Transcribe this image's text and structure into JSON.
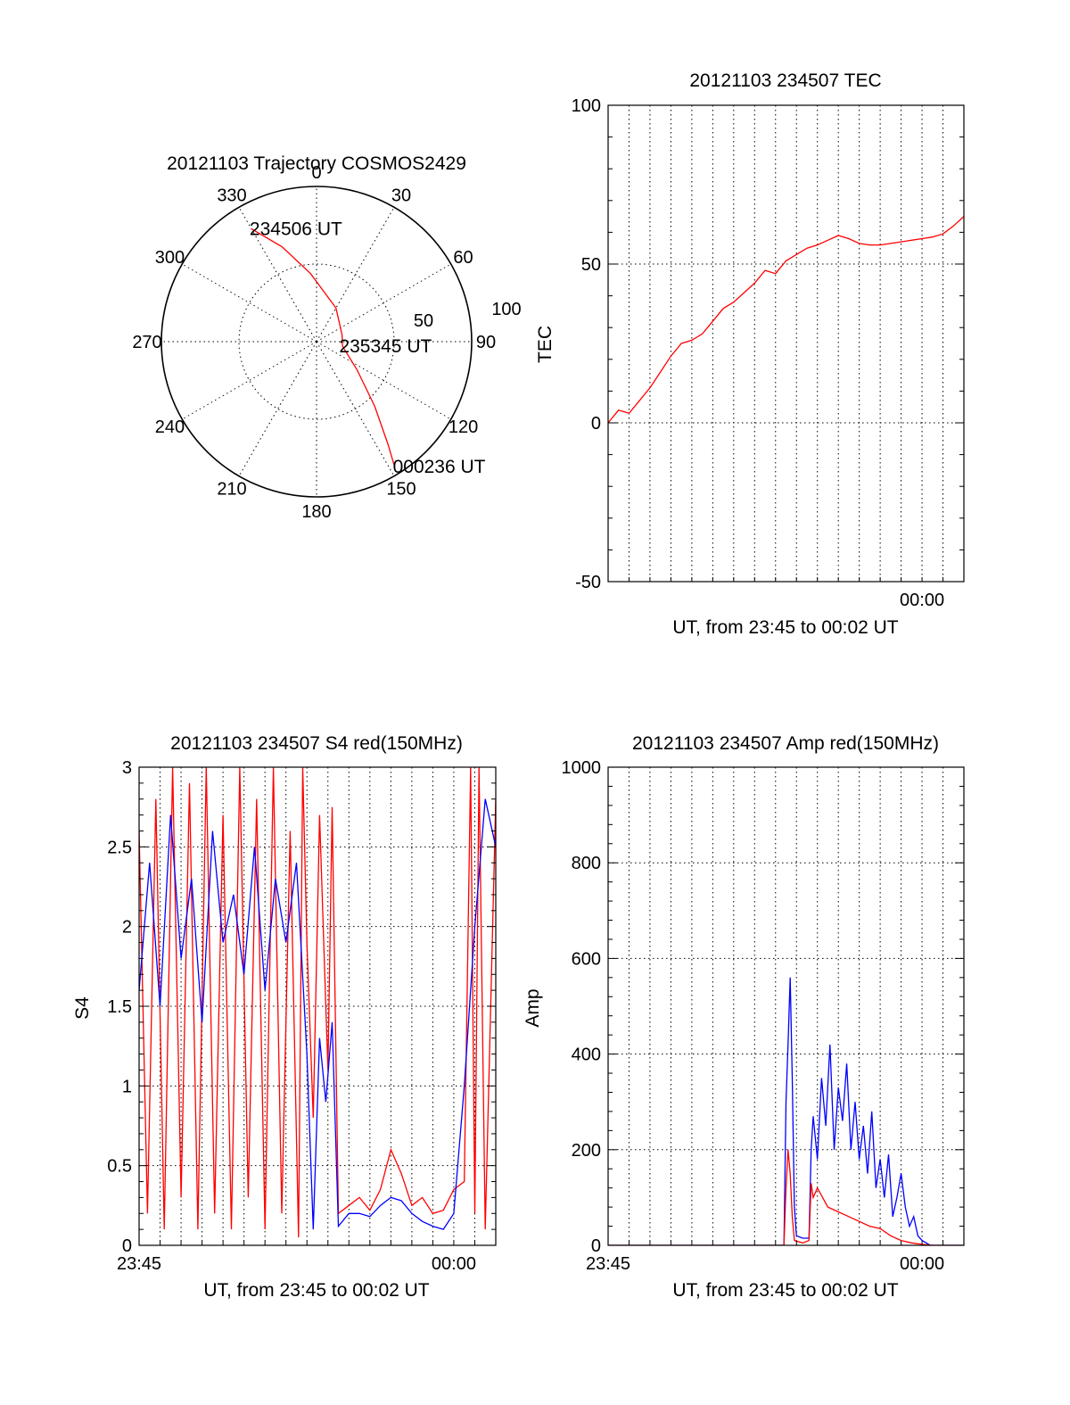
{
  "colors": {
    "red": "#ff0000",
    "blue": "#0000ff",
    "axis": "#000000",
    "grid": "#000000",
    "background": "#ffffff"
  },
  "chart_data": [
    {
      "id": "trajectory",
      "type": "polar",
      "title": "20121103 Trajectory COSMOS2429",
      "angle_labels": [
        "0",
        "30",
        "60",
        "90",
        "120",
        "150",
        "180",
        "210",
        "240",
        "270",
        "300",
        "330"
      ],
      "radial_labels": [
        "50",
        "100"
      ],
      "radial_range": [
        0,
        100
      ],
      "grid": true,
      "annotations": [
        {
          "text": "234506 UT",
          "azimuth": 330,
          "radius": 84
        },
        {
          "text": "235345 UT",
          "azimuth": 100,
          "radius": 16
        },
        {
          "text": "000236 UT",
          "azimuth": 148,
          "radius": 95
        }
      ],
      "series": [
        {
          "color": "red",
          "points": [
            {
              "azimuth": 330,
              "radius": 84
            },
            {
              "azimuth": 340,
              "radius": 65
            },
            {
              "azimuth": 355,
              "radius": 44
            },
            {
              "azimuth": 30,
              "radius": 25
            },
            {
              "azimuth": 75,
              "radius": 17
            },
            {
              "azimuth": 100,
              "radius": 17
            },
            {
              "azimuth": 125,
              "radius": 32
            },
            {
              "azimuth": 138,
              "radius": 56
            },
            {
              "azimuth": 145,
              "radius": 80
            },
            {
              "azimuth": 148,
              "radius": 95
            }
          ]
        }
      ]
    },
    {
      "id": "tec",
      "type": "line",
      "title": "20121103 234507 TEC",
      "xlabel": "UT, from 23:45 to 00:02 UT",
      "ylabel": "TEC",
      "ylim": [
        -50,
        100
      ],
      "yticks": [
        "-50",
        "0",
        "50",
        "100"
      ],
      "xlim": [
        0,
        17
      ],
      "xtick_labels": [
        {
          "x": 15,
          "label": "00:00"
        }
      ],
      "grid": true,
      "series": [
        {
          "color": "red",
          "x": [
            0,
            0.5,
            1,
            1.5,
            2,
            2.5,
            3,
            3.5,
            4,
            4.5,
            5,
            5.5,
            6,
            6.5,
            7,
            7.5,
            8,
            8.5,
            9,
            9.5,
            10,
            10.5,
            11,
            11.5,
            12,
            12.5,
            13,
            13.5,
            14,
            14.5,
            15,
            15.5,
            16,
            16.5,
            17
          ],
          "y": [
            0,
            4,
            3,
            7,
            11,
            16,
            21,
            25,
            26,
            28,
            32,
            36,
            38,
            41,
            44,
            48,
            47,
            51,
            53,
            55,
            56,
            57.5,
            59,
            58,
            56.5,
            56,
            56,
            56.5,
            57,
            57.5,
            58,
            58.5,
            59.5,
            62,
            65
          ]
        }
      ]
    },
    {
      "id": "s4",
      "type": "line",
      "title": "20121103 234507 S4 red(150MHz)",
      "xlabel": "UT, from 23:45 to 00:02 UT",
      "ylabel": "S4",
      "ylim": [
        0,
        3
      ],
      "yticks": [
        "0",
        "0.5",
        "1",
        "1.5",
        "2",
        "2.5",
        "3"
      ],
      "xlim": [
        0,
        17
      ],
      "xtick_labels": [
        {
          "x": 0,
          "label": "23:45"
        },
        {
          "x": 15,
          "label": "00:00"
        }
      ],
      "grid": true,
      "series": [
        {
          "color": "red",
          "x": [
            0,
            0.4,
            0.8,
            1.2,
            1.6,
            2,
            2.4,
            2.8,
            3.2,
            3.6,
            4,
            4.4,
            4.8,
            5.2,
            5.6,
            6,
            6.4,
            6.8,
            7.2,
            7.6,
            7.8,
            8,
            8.3,
            8.6,
            8.9,
            9,
            9.2,
            9.5,
            10,
            10.5,
            11,
            11.5,
            12,
            12.5,
            13,
            13.5,
            14,
            14.5,
            15,
            15.5,
            15.8,
            16,
            16.2,
            16.5,
            17
          ],
          "y": [
            2.6,
            0.2,
            2.8,
            0.1,
            3,
            0.3,
            2.9,
            0.1,
            3,
            0.2,
            2.7,
            0.1,
            3,
            0.3,
            2.8,
            0.1,
            3,
            0.2,
            2.6,
            0.05,
            3,
            1.9,
            0.8,
            2.7,
            1.5,
            1.1,
            2.75,
            0.2,
            0.25,
            0.3,
            0.22,
            0.35,
            0.6,
            0.45,
            0.25,
            0.3,
            0.2,
            0.22,
            0.35,
            0.4,
            3,
            0.2,
            3,
            0.1,
            2.8
          ]
        },
        {
          "color": "blue",
          "x": [
            0,
            0.5,
            1,
            1.5,
            2,
            2.5,
            3,
            3.5,
            4,
            4.5,
            5,
            5.5,
            6,
            6.5,
            7,
            7.5,
            8,
            8.3,
            8.6,
            8.9,
            9.2,
            9.5,
            10,
            10.5,
            11,
            11.5,
            12,
            12.5,
            13,
            13.5,
            14,
            14.5,
            15,
            15.5,
            16,
            16.5,
            17
          ],
          "y": [
            1.6,
            2.4,
            1.5,
            2.7,
            1.8,
            2.3,
            1.4,
            2.6,
            1.9,
            2.2,
            1.7,
            2.5,
            1.6,
            2.3,
            1.9,
            2.4,
            1.2,
            0.1,
            1.3,
            0.9,
            1.4,
            0.12,
            0.2,
            0.2,
            0.18,
            0.25,
            0.3,
            0.28,
            0.2,
            0.15,
            0.12,
            0.1,
            0.2,
            1.0,
            2.0,
            2.8,
            2.5
          ]
        }
      ]
    },
    {
      "id": "amp",
      "type": "line",
      "title": "20121103 234507 Amp red(150MHz)",
      "xlabel": "UT, from 23:45 to 00:02 UT",
      "ylabel": "Amp",
      "ylim": [
        0,
        1000
      ],
      "yticks": [
        "0",
        "200",
        "400",
        "600",
        "800",
        "1000"
      ],
      "xlim": [
        0,
        17
      ],
      "xtick_labels": [
        {
          "x": 0,
          "label": "23:45"
        },
        {
          "x": 15,
          "label": "00:00"
        }
      ],
      "grid": true,
      "series": [
        {
          "color": "blue",
          "x": [
            0,
            8.4,
            8.5,
            8.6,
            8.7,
            8.8,
            8.9,
            9,
            9.3,
            9.6,
            9.7,
            9.8,
            10,
            10.2,
            10.4,
            10.6,
            10.8,
            11,
            11.2,
            11.4,
            11.6,
            11.8,
            12,
            12.2,
            12.4,
            12.6,
            12.8,
            13,
            13.2,
            13.4,
            13.6,
            13.8,
            14,
            14.2,
            14.4,
            14.6,
            14.8,
            15,
            15.2,
            15.4,
            17
          ],
          "y": [
            0,
            0,
            300,
            420,
            560,
            350,
            80,
            20,
            15,
            15,
            200,
            270,
            180,
            350,
            250,
            420,
            200,
            330,
            260,
            380,
            200,
            300,
            180,
            250,
            150,
            280,
            120,
            180,
            100,
            190,
            60,
            100,
            150,
            80,
            40,
            60,
            20,
            10,
            5,
            0,
            0
          ]
        },
        {
          "color": "red",
          "x": [
            0,
            8.4,
            8.5,
            8.6,
            8.7,
            8.8,
            8.9,
            9.3,
            9.6,
            9.7,
            9.8,
            10,
            10.5,
            11,
            11.5,
            12,
            12.5,
            13,
            13.5,
            14,
            14.5,
            15,
            15.5,
            17
          ],
          "y": [
            0,
            0,
            120,
            200,
            150,
            60,
            10,
            5,
            10,
            130,
            100,
            120,
            80,
            70,
            60,
            50,
            40,
            35,
            20,
            10,
            5,
            2,
            0,
            0
          ]
        }
      ]
    }
  ]
}
